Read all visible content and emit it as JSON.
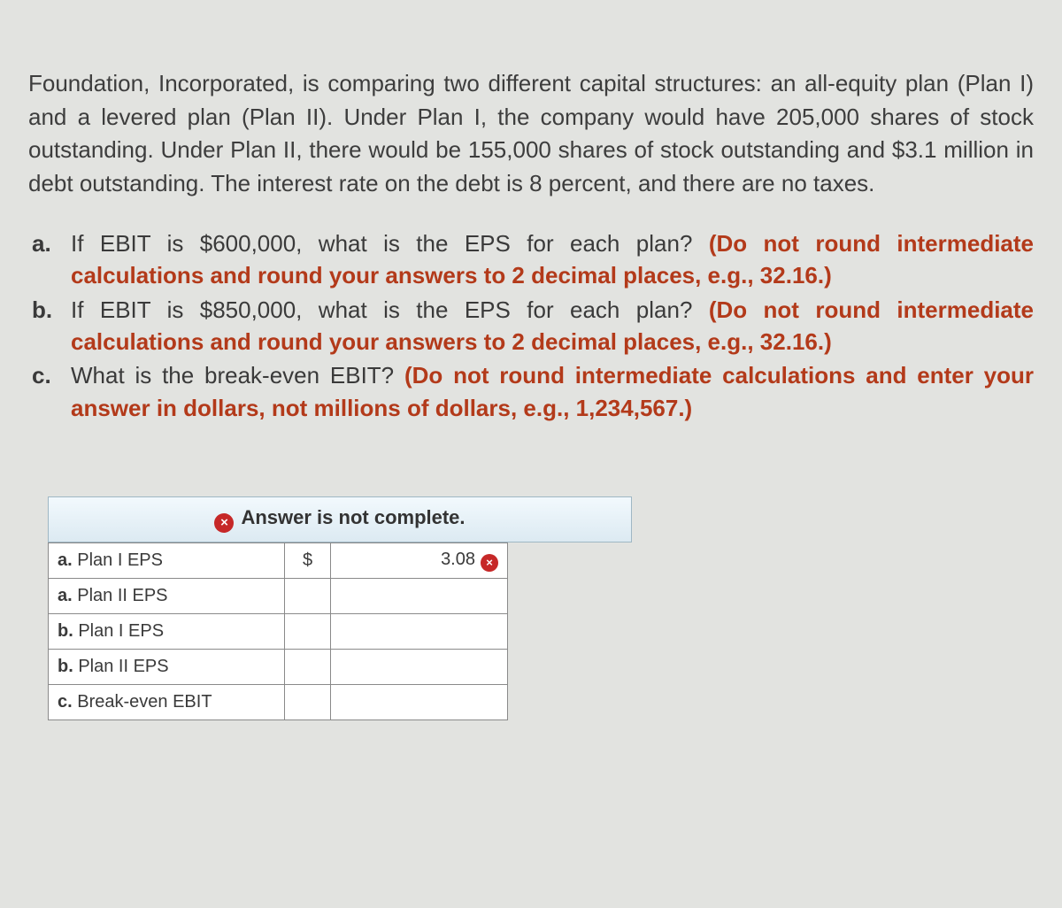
{
  "intro": "Foundation, Incorporated, is comparing two different capital structures: an all-equity plan (Plan I) and a levered plan (Plan II). Under Plan I, the company would have 205,000 shares of stock outstanding. Under Plan II, there would be 155,000 shares of stock outstanding and $3.1 million in debt outstanding. The interest rate on the debt is 8 percent, and there are no taxes.",
  "questions": [
    {
      "text": "If EBIT is $600,000, what is the EPS for each plan? ",
      "hint": "(Do not round intermediate calculations and round your answers to 2 decimal places, e.g., 32.16.)"
    },
    {
      "text": "If EBIT is $850,000, what is the EPS for each plan? ",
      "hint": "(Do not round intermediate calculations and round your answers to 2 decimal places, e.g., 32.16.)"
    },
    {
      "text": "What is the break-even EBIT? ",
      "hint": "(Do not round intermediate calculations and enter your answer in dollars, not millions of dollars, e.g., 1,234,567.)"
    }
  ],
  "colors": {
    "hint_color": "#b33a1a",
    "text_color": "#3a3a3a",
    "status_border": "#9fb7c4",
    "error_badge": "#c62828"
  },
  "status": {
    "icon": "×",
    "message": "Answer is not complete."
  },
  "answer_table": {
    "rows": [
      {
        "qletter": "a.",
        "label": " Plan I EPS",
        "currency": "$",
        "value": "3.08",
        "wrong": true
      },
      {
        "qletter": "a.",
        "label": " Plan II EPS",
        "currency": "",
        "value": "",
        "wrong": false
      },
      {
        "qletter": "b.",
        "label": " Plan I EPS",
        "currency": "",
        "value": "",
        "wrong": false
      },
      {
        "qletter": "b.",
        "label": " Plan II EPS",
        "currency": "",
        "value": "",
        "wrong": false
      },
      {
        "qletter": "c.",
        "label": " Break-even EBIT",
        "currency": "",
        "value": "",
        "wrong": false
      }
    ]
  }
}
